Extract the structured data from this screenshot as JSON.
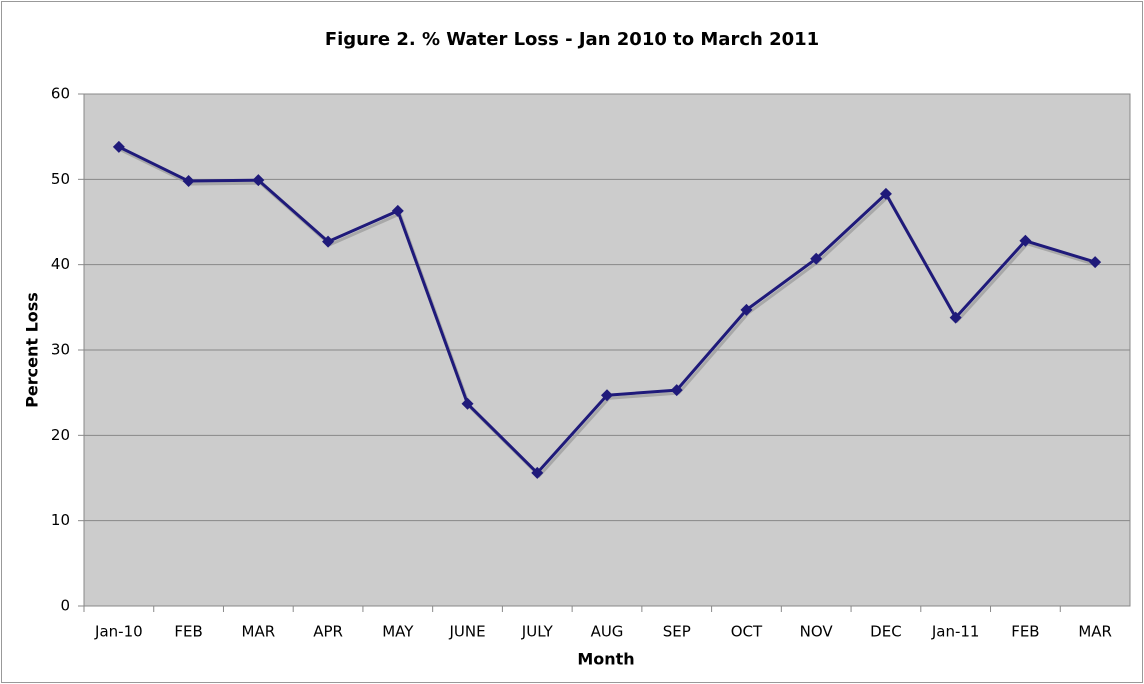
{
  "chart_data": {
    "type": "line",
    "title": "Figure 2. % Water Loss - Jan 2010 to March 2011",
    "x_label": "Month",
    "y_label": "Percent Loss",
    "categories": [
      "Jan-10",
      "FEB",
      "MAR",
      "APR",
      "MAY",
      "JUNE",
      "JULY",
      "AUG",
      "SEP",
      "OCT",
      "NOV",
      "DEC",
      "Jan-11",
      "FEB",
      "MAR"
    ],
    "series": [
      {
        "name": "Percent Loss",
        "color": "#1f1a7a",
        "values": [
          53.8,
          49.8,
          49.9,
          42.7,
          46.3,
          23.7,
          15.6,
          24.7,
          25.3,
          34.7,
          40.7,
          48.3,
          33.8,
          42.8,
          40.3
        ]
      }
    ],
    "ylim": [
      0,
      60
    ],
    "yticks": [
      0,
      10,
      20,
      30,
      40,
      50,
      60
    ],
    "grid": true
  }
}
